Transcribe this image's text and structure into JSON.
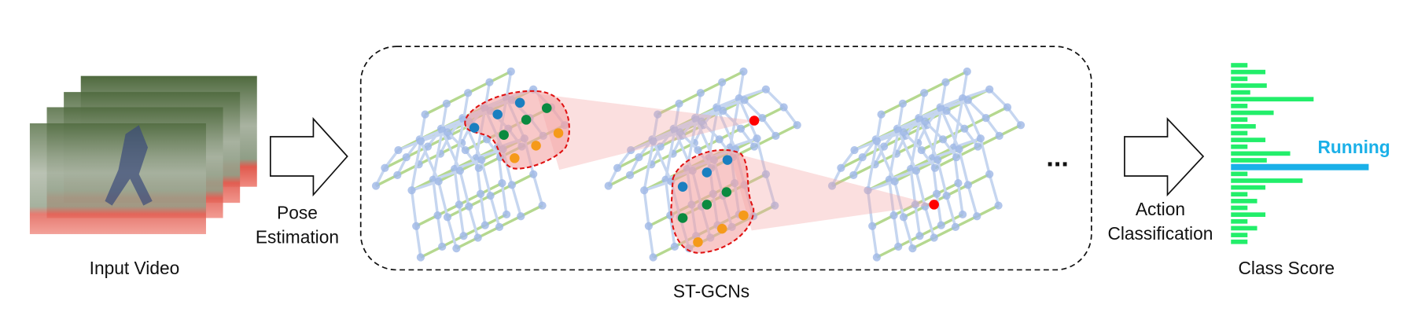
{
  "input_label": "Input Video",
  "pose_label": [
    "Pose",
    "Estimation"
  ],
  "model_label": "ST-GCNs",
  "ellipsis": "...",
  "action_label": [
    "Action",
    "Classification"
  ],
  "output_label": "Class Score",
  "top_class": "Running",
  "class_scores": {
    "values": [
      0.12,
      0.25,
      0.12,
      0.26,
      0.14,
      0.6,
      0.12,
      0.31,
      0.12,
      0.18,
      0.12,
      0.25,
      0.12,
      0.43,
      0.26,
      1,
      0.12,
      0.52,
      0.25,
      0.12,
      0.19,
      0.12,
      0.25,
      0.12,
      0.19,
      0.12,
      0.12
    ],
    "color": "#22ee6a",
    "top_color": "#1ab0e8"
  }
}
